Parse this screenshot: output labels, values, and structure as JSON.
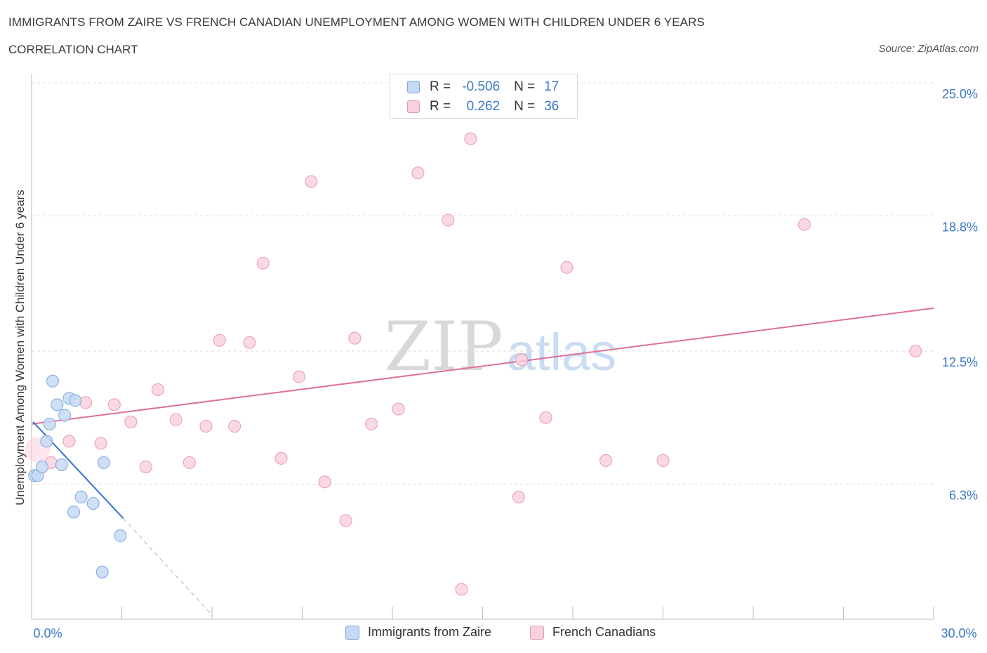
{
  "header": {
    "title": "IMMIGRANTS FROM ZAIRE VS FRENCH CANADIAN UNEMPLOYMENT AMONG WOMEN WITH CHILDREN UNDER 6 YEARS",
    "subtitle": "CORRELATION CHART",
    "source": "Source: ZipAtlas.com"
  },
  "watermark": {
    "zip": "ZIP",
    "atlas": "atlas"
  },
  "legend_stats": {
    "blue": {
      "r_label": "R =",
      "r_value": "-0.506",
      "n_label": "N =",
      "n_value": "17"
    },
    "pink": {
      "r_label": "R =",
      "r_value": "0.262",
      "n_label": "N =",
      "n_value": "36"
    }
  },
  "colors": {
    "blue_fill": "#c5d9f5",
    "blue_stroke": "#7ea6e0",
    "blue_line": "#2f74d0",
    "pink_fill": "#f9d0dd",
    "pink_stroke": "#e79ab4",
    "pink_line": "#e0709a",
    "axis_label": "#3a78c9",
    "grid": "#dddddd"
  },
  "chart_data": {
    "type": "scatter",
    "title": "IMMIGRANTS FROM ZAIRE VS FRENCH CANADIAN UNEMPLOYMENT AMONG WOMEN WITH CHILDREN UNDER 6 YEARS",
    "xlabel": "",
    "ylabel": "Unemployment Among Women with Children Under 6 years",
    "xlim": [
      0,
      30
    ],
    "ylim": [
      0,
      25
    ],
    "x_tick_labels": [
      "0.0%",
      "30.0%"
    ],
    "y_ticks": [
      6.3,
      12.5,
      18.8,
      25.0
    ],
    "y_tick_labels": [
      "6.3%",
      "12.5%",
      "18.8%",
      "25.0%"
    ],
    "legend": [
      "Immigrants from Zaire",
      "French Canadians"
    ],
    "series": [
      {
        "name": "Immigrants from Zaire",
        "color": "blue",
        "points": [
          [
            0.1,
            6.7
          ],
          [
            0.2,
            6.7
          ],
          [
            0.35,
            7.1
          ],
          [
            0.5,
            8.3
          ],
          [
            0.6,
            9.1
          ],
          [
            0.7,
            11.1
          ],
          [
            0.85,
            10.0
          ],
          [
            1.0,
            7.2
          ],
          [
            1.1,
            9.5
          ],
          [
            1.25,
            10.3
          ],
          [
            1.45,
            10.2
          ],
          [
            1.4,
            5.0
          ],
          [
            1.65,
            5.7
          ],
          [
            2.05,
            5.4
          ],
          [
            2.4,
            7.3
          ],
          [
            2.35,
            2.2
          ],
          [
            2.95,
            3.9
          ]
        ],
        "trend": {
          "solid": [
            [
              0.05,
              9.2
            ],
            [
              3.05,
              4.7
            ]
          ],
          "dashed": [
            [
              3.05,
              4.7
            ],
            [
              6.0,
              0.2
            ]
          ]
        }
      },
      {
        "name": "French Canadians",
        "color": "pink",
        "points": [
          [
            0.2,
            7.9
          ],
          [
            0.65,
            7.3
          ],
          [
            1.25,
            8.3
          ],
          [
            1.8,
            10.1
          ],
          [
            2.3,
            8.2
          ],
          [
            2.75,
            10.0
          ],
          [
            3.3,
            9.2
          ],
          [
            3.8,
            7.1
          ],
          [
            4.2,
            10.7
          ],
          [
            4.8,
            9.3
          ],
          [
            5.25,
            7.3
          ],
          [
            5.8,
            9.0
          ],
          [
            6.25,
            13.0
          ],
          [
            6.75,
            9.0
          ],
          [
            7.25,
            12.9
          ],
          [
            7.7,
            16.6
          ],
          [
            8.3,
            7.5
          ],
          [
            8.9,
            11.3
          ],
          [
            9.3,
            20.4
          ],
          [
            9.75,
            6.4
          ],
          [
            10.45,
            4.6
          ],
          [
            10.75,
            13.1
          ],
          [
            11.3,
            9.1
          ],
          [
            12.2,
            9.8
          ],
          [
            12.85,
            20.8
          ],
          [
            13.85,
            18.6
          ],
          [
            14.3,
            1.4
          ],
          [
            14.6,
            22.4
          ],
          [
            16.2,
            5.7
          ],
          [
            16.3,
            12.1
          ],
          [
            17.1,
            9.4
          ],
          [
            17.8,
            16.4
          ],
          [
            19.1,
            7.4
          ],
          [
            21.0,
            7.4
          ],
          [
            25.7,
            18.4
          ],
          [
            29.4,
            12.5
          ]
        ],
        "trend": {
          "solid": [
            [
              0.0,
              9.1
            ],
            [
              30.0,
              14.5
            ]
          ]
        }
      }
    ]
  }
}
